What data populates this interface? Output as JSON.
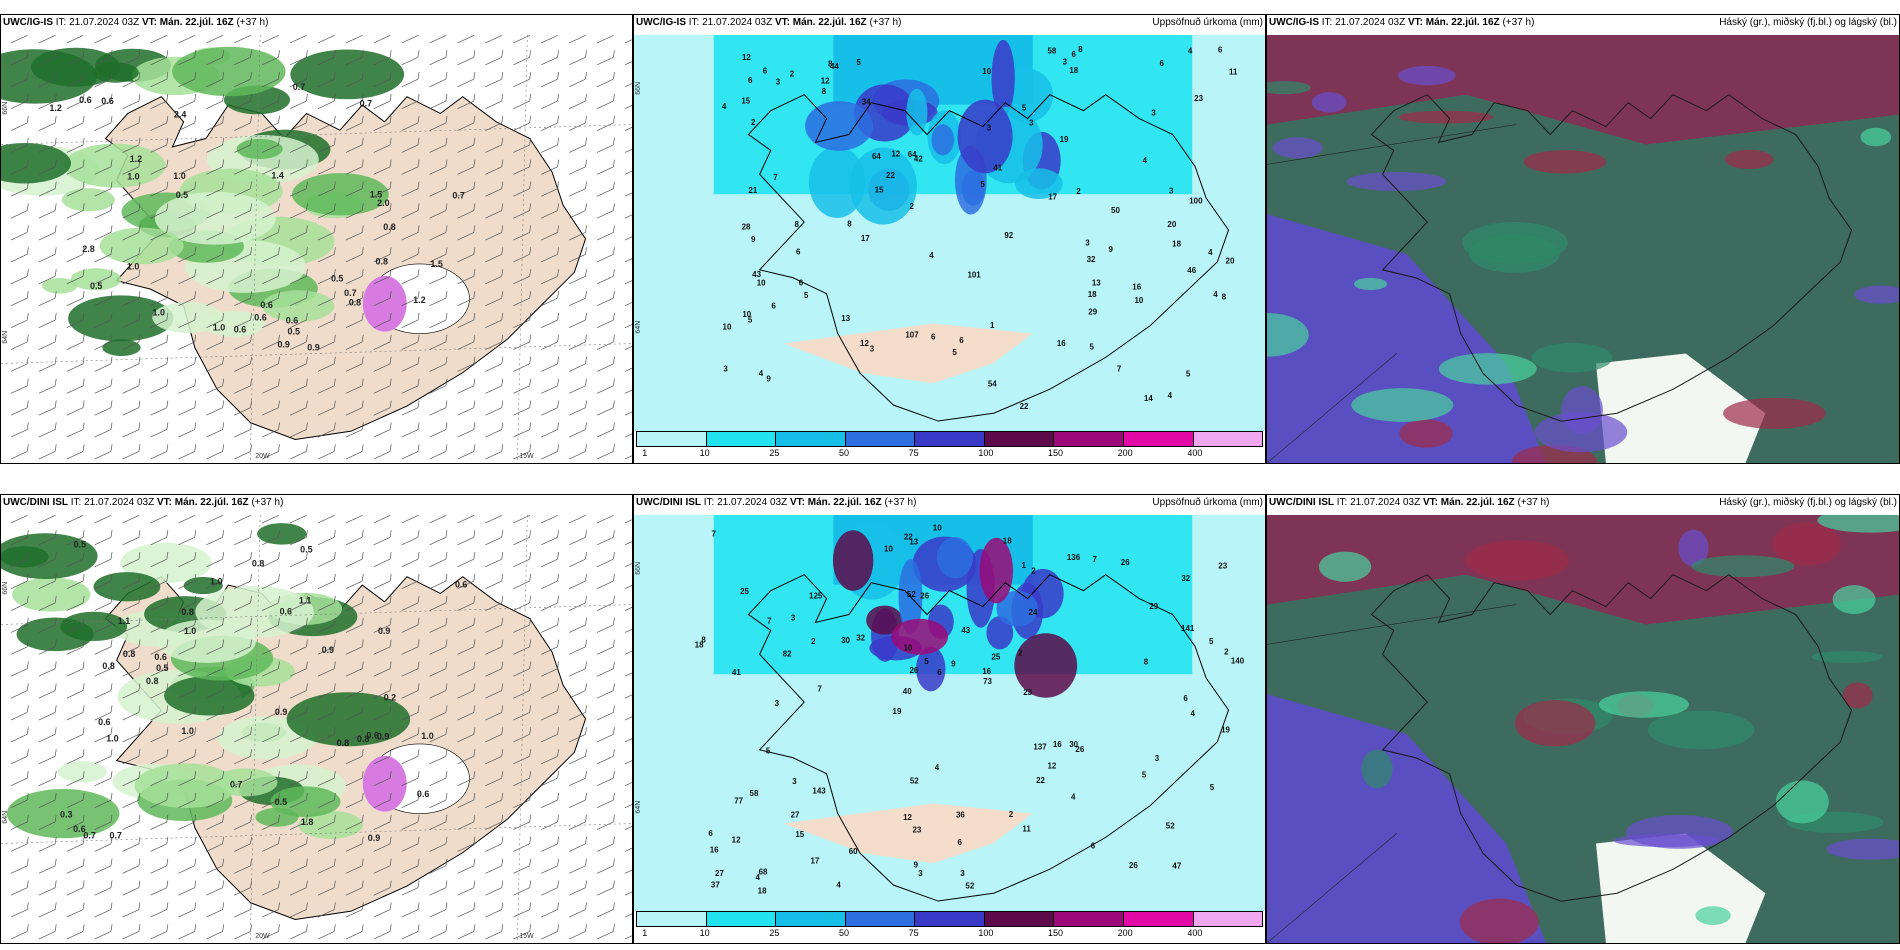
{
  "panels": {
    "p1": {
      "model": "UWC/IG-IS",
      "it_label": "IT:",
      "it_value": "21.07.2024 03Z",
      "vt_label": "VT:",
      "vt_value": "Mán. 22.júl. 16Z",
      "lead": "(+37 h)",
      "right_title": ""
    },
    "p2": {
      "model": "UWC/IG-IS",
      "it_label": "IT:",
      "it_value": "21.07.2024 03Z",
      "vt_label": "VT:",
      "vt_value": "Mán. 22.júl. 16Z",
      "lead": "(+37 h)",
      "right_title": "Uppsöfnuð úrkoma (mm)"
    },
    "p3": {
      "model": "UWC/IG-IS",
      "it_label": "IT:",
      "it_value": "21.07.2024 03Z",
      "vt_label": "VT:",
      "vt_value": "Mán. 22.júl. 16Z",
      "lead": "(+37 h)",
      "right_title": "Háský (gr.), miðský (fj.bl.) og lágský (bl.)"
    },
    "p4": {
      "model": "UWC/DINI ISL",
      "it_label": "IT:",
      "it_value": "21.07.2024 03Z",
      "vt_label": "VT:",
      "vt_value": "Mán. 22.júl. 16Z",
      "lead": "(+37 h)",
      "right_title": ""
    },
    "p5": {
      "model": "UWC/DINI ISL",
      "it_label": "IT:",
      "it_value": "21.07.2024 03Z",
      "vt_label": "VT:",
      "vt_value": "Mán. 22.júl. 16Z",
      "lead": "(+37 h)",
      "right_title": "Uppsöfnuð úrkoma (mm)"
    },
    "p6": {
      "model": "UWC/DINI ISL",
      "it_label": "IT:",
      "it_value": "21.07.2024 03Z",
      "vt_label": "VT:",
      "vt_value": "Mán. 22.júl. 16Z",
      "lead": "(+37 h)",
      "right_title": "Háský (gr.), miðský (fj.bl.) og lágský (bl.)"
    }
  },
  "axis_labels": {
    "lat66": "66N",
    "lat64": "64N",
    "lat62": "62N",
    "lon20": "20W",
    "lon15": "15W"
  },
  "colorbar": {
    "labels": [
      "1",
      "10",
      "25",
      "50",
      "75",
      "100",
      "150",
      "200",
      "400"
    ],
    "colors": [
      "#b8f4f8",
      "#22e3ef",
      "#16bfe8",
      "#2d6fe0",
      "#3a3ac8",
      "#5c0a4a",
      "#9b0a78",
      "#e30aa8",
      "#f0a8f0"
    ]
  },
  "precip_values": {
    "p2": [
      "32",
      "18",
      "4",
      "44",
      "42",
      "7",
      "5",
      "18",
      "64",
      "22",
      "15",
      "28",
      "6",
      "5",
      "107",
      "100",
      "101",
      "92",
      "64",
      "5",
      "6",
      "6",
      "15",
      "46",
      "58",
      "12",
      "13",
      "9",
      "8",
      "50",
      "54",
      "16",
      "22",
      "17",
      "20",
      "10",
      "18",
      "8",
      "6",
      "6",
      "23",
      "8",
      "4",
      "6",
      "16",
      "13",
      "10",
      "6",
      "17",
      "21",
      "20",
      "12",
      "4",
      "3",
      "29",
      "14",
      "19",
      "12",
      "6",
      "2",
      "9",
      "34",
      "41",
      "43",
      "10",
      "7",
      "4",
      "6",
      "8",
      "10",
      "3",
      "5",
      "2",
      "3",
      "5",
      "6",
      "10",
      "12",
      "3",
      "3",
      "4",
      "5",
      "3",
      "4",
      "3",
      "4",
      "8",
      "5",
      "11",
      "3",
      "5",
      "9",
      "4",
      "8",
      "2",
      "2",
      "1",
      "3"
    ],
    "p5": [
      "47",
      "41",
      "32",
      "19",
      "24",
      "68",
      "52",
      "43",
      "58",
      "32",
      "16",
      "15",
      "26",
      "25",
      "26",
      "25",
      "13",
      "140",
      "137",
      "141",
      "40",
      "12",
      "26",
      "125",
      "136",
      "143",
      "26",
      "52",
      "30",
      "52",
      "30",
      "82",
      "22",
      "17",
      "5",
      "16",
      "27",
      "23",
      "73",
      "77",
      "29",
      "23",
      "12",
      "11",
      "27",
      "18",
      "37",
      "36",
      "26",
      "10",
      "7",
      "8",
      "3",
      "7",
      "4",
      "18",
      "10",
      "5",
      "5",
      "52",
      "60",
      "16",
      "2",
      "6",
      "7",
      "7",
      "19",
      "10",
      "6",
      "9",
      "12",
      "23",
      "3",
      "9",
      "8",
      "4",
      "6",
      "3",
      "2",
      "22",
      "4",
      "2",
      "4",
      "6",
      "5",
      "18",
      "3",
      "1",
      "2",
      "3",
      "4",
      "6",
      "2",
      "5",
      "3"
    ]
  },
  "isohyet_values": {
    "p1": [
      "1.0",
      "0.6",
      "1.4",
      "1.2",
      "0.7",
      "0.5",
      "0.6",
      "2.8",
      "1.5",
      "1.2",
      "1.0",
      "1.2",
      "0.6",
      "0.9",
      "0.7",
      "0.5",
      "0.7",
      "0.8",
      "1.5",
      "2.0",
      "0.6",
      "0.8",
      "1.0",
      "0.5",
      "0.6",
      "1.0",
      "0.7",
      "0.9",
      "2.4",
      "1.0",
      "0.6",
      "0.5",
      "0.8"
    ],
    "p4": [
      "0.6",
      "0.8",
      "1.0",
      "0.6",
      "0.8",
      "0.7",
      "0.9",
      "0.6",
      "0.5",
      "1.0",
      "0.8",
      "0.6",
      "0.9",
      "0.5",
      "0.6",
      "0.8",
      "1.1",
      "1.0",
      "0.7",
      "0.8",
      "0.9",
      "1.0",
      "0.6",
      "0.5",
      "1.8",
      "0.8",
      "0.9",
      "0.8",
      "0.6",
      "0.3",
      "0.2",
      "1.1",
      "0.5",
      "1.0",
      "0.9",
      "0.7"
    ]
  }
}
